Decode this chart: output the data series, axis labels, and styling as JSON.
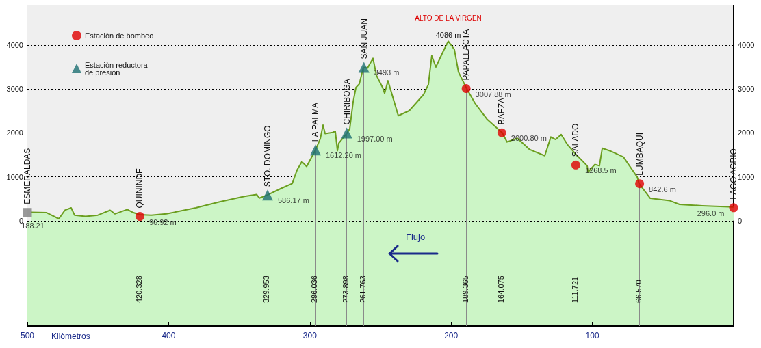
{
  "chart_data": {
    "type": "area",
    "xlabel": "Kilòmetros",
    "xlim": [
      500,
      0
    ],
    "xticks": [
      500,
      400,
      300,
      200,
      100
    ],
    "ylim": [
      -2400,
      4900
    ],
    "yticks": [
      0,
      1000,
      2000,
      3000,
      4000
    ],
    "y2lim": [
      -2400,
      4900
    ],
    "y2ticks": [
      0,
      1000,
      2000,
      3000,
      4000
    ],
    "grid": "y",
    "legend": "top left",
    "series": [
      {
        "color": "#6b9e1f",
        "marker": "none",
        "x": [
          497.6,
          486.4,
          477.7,
          473.4,
          469.0,
          466.6,
          458.8,
          450.1,
          441.4,
          438.0,
          429.3,
          424.9,
          420.3,
          412.3,
          401.6,
          380.8,
          363.9,
          346.4,
          337.7,
          335.8,
          330.0,
          320.3,
          312.5,
          309.1,
          305.7,
          302.3,
          296.0,
          292.6,
          290.7,
          289.2,
          283.9,
          282.0,
          280.5,
          279.6,
          273.7,
          271.8,
          269.4,
          267.4,
          265.0,
          262.1,
          259.2,
          255.3,
          252.9,
          248.5,
          247.1,
          244.7,
          237.4,
          229.7,
          219.5,
          216.1,
          213.7,
          210.8,
          205.4,
          202.0,
          197.7,
          194.8,
          189.0,
          183.1,
          174.4,
          163.8,
          160.4,
          153.1,
          144.4,
          133.7,
          129.4,
          126.0,
          122.1,
          117.7,
          111.9,
          103.7,
          103.0,
          98.3,
          95.0,
          93.0,
          87.7,
          78.0,
          68.3,
          66.9,
          59.1,
          45.1,
          38.3,
          22.3,
          0
        ],
        "values": [
          190,
          183,
          44,
          240,
          293,
          127,
          100,
          127,
          238,
          155,
          255,
          183,
          138,
          127,
          155,
          293,
          430,
          553,
          598,
          515,
          586,
          736,
          847,
          1151,
          1345,
          1234,
          1612,
          1870,
          2175,
          1981,
          2009,
          2036,
          1594,
          1760,
          1997,
          2092,
          2700,
          3033,
          3116,
          3493,
          3475,
          3697,
          3309,
          3033,
          2902,
          3186,
          2390,
          2503,
          2873,
          3101,
          3755,
          3499,
          3869,
          4086,
          3898,
          3385,
          3008,
          2674,
          2304,
          2001,
          1792,
          1877,
          1621,
          1479,
          1906,
          1849,
          1963,
          1735,
          1519,
          1252,
          1110,
          1280,
          1252,
          1650,
          1593,
          1451,
          996,
          843,
          512,
          455,
          370,
          341,
          313
        ],
        "value_labels": [
          null,
          null,
          null,
          null,
          null,
          null,
          null,
          null,
          null,
          null,
          null,
          null,
          null,
          null,
          null,
          null,
          null,
          null,
          null,
          null,
          null,
          null,
          null,
          null,
          null,
          null,
          null,
          null,
          null,
          null,
          null,
          null,
          null,
          null,
          null,
          null,
          null,
          null,
          null,
          null,
          null,
          null,
          null,
          null,
          null,
          null,
          null,
          null,
          null,
          null,
          null,
          null,
          null,
          "4086 m",
          null,
          null,
          null,
          null,
          null,
          null,
          null,
          null,
          null,
          null,
          null,
          null,
          null,
          null,
          null,
          null,
          null,
          null,
          null,
          null,
          null,
          null,
          null,
          null,
          null,
          null,
          null,
          null,
          null
        ]
      },
      {
        "type": "scatter",
        "name": "Estaciòn de bombeo",
        "color": "#e00000",
        "marker": "circle",
        "x": [
          420.328,
          189.365,
          164.075,
          111.721,
          66.57,
          0
        ],
        "values": [
          96.92,
          3007.88,
          2000.8,
          1268.5,
          842.6,
          296.0
        ],
        "value_labels": [
          "96.92 m",
          "3007.88 m",
          "2000.80 m",
          "1268.5 m",
          "842.6 m",
          "296.0 m"
        ]
      },
      {
        "type": "scatter",
        "name": "Estaciòn reductora\nde presiòn",
        "color": "#1d6f72",
        "marker": "triangle",
        "x": [
          329.953,
          296.036,
          273.898,
          261.763
        ],
        "values": [
          586.17,
          1612.2,
          1997.0,
          3493
        ],
        "value_labels": [
          "586.17 m",
          "1612.20 m",
          "1997.00 m",
          "3493 m"
        ]
      },
      {
        "type": "scatter",
        "color": "#808080",
        "marker": "square",
        "x": [
          500
        ],
        "values": [
          188.21
        ],
        "value_labels": [
          "188.21"
        ]
      }
    ],
    "ref_lines": [
      {
        "axis": "x",
        "value": 420.328,
        "label": "420.328"
      },
      {
        "axis": "x",
        "value": 329.953,
        "label": "329.953"
      },
      {
        "axis": "x",
        "value": 296.036,
        "label": "296.036"
      },
      {
        "axis": "x",
        "value": 273.898,
        "label": "273.898"
      },
      {
        "axis": "x",
        "value": 261.763,
        "label": "261.763"
      },
      {
        "axis": "x",
        "value": 189.365,
        "label": "189.365"
      },
      {
        "axis": "x",
        "value": 164.075,
        "label": "164.075"
      },
      {
        "axis": "x",
        "value": 111.721,
        "label": "111.721"
      },
      {
        "axis": "x",
        "value": 66.57,
        "label": "66.570"
      }
    ],
    "annotations": [
      {
        "text": "ESMERALDAS",
        "x": 500,
        "y": 188.21
      },
      {
        "text": "QUININDE",
        "x": 420.328,
        "y": 96.92
      },
      {
        "text": "STO. DOMINGO",
        "x": 329.953,
        "y": 586.17
      },
      {
        "text": "LA PALMA",
        "x": 296.036,
        "y": 1612.2
      },
      {
        "text": "CHIRIBOGA",
        "x": 273.898,
        "y": 1997.0
      },
      {
        "text": "SAN JUAN",
        "x": 261.763,
        "y": 3493
      },
      {
        "text": "PAPALLACTA",
        "x": 189.365,
        "y": 3007.88
      },
      {
        "text": "BAEZA",
        "x": 164.075,
        "y": 2000.8
      },
      {
        "text": "SALADO",
        "x": 111.721,
        "y": 1268.5
      },
      {
        "text": "LUMBAQUI",
        "x": 66.57,
        "y": 842.6
      },
      {
        "text": "LAGO AGRIO",
        "x": 0,
        "y": 296.0
      },
      {
        "text": "ALTO DE LA VIRGEN",
        "x": 202.0,
        "y": 4086
      },
      "Flujo"
    ]
  }
}
